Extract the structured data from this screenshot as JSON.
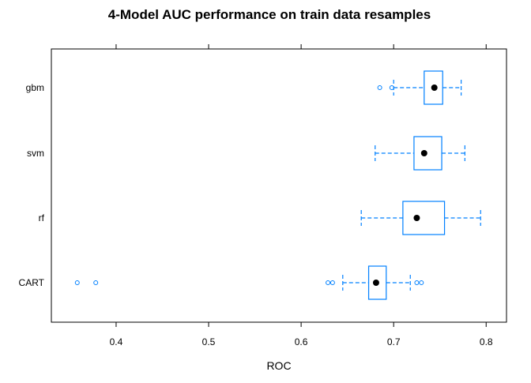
{
  "chart_data": {
    "type": "boxplot",
    "title": "4-Model AUC performance on train data resamples",
    "xlabel": "ROC",
    "ylabel": "",
    "xlim": [
      0.33,
      0.822
    ],
    "xticks": [
      "0.4",
      "0.5",
      "0.6",
      "0.7",
      "0.8"
    ],
    "xtick_values": [
      0.4,
      0.5,
      0.6,
      0.7,
      0.8
    ],
    "grid": false,
    "categories": [
      "gbm",
      "svm",
      "rf",
      "CART"
    ],
    "series": [
      {
        "name": "gbm",
        "whisker_low": 0.7,
        "q1": 0.733,
        "median": 0.744,
        "q3": 0.753,
        "whisker_high": 0.773,
        "outliers": [
          0.685,
          0.698
        ]
      },
      {
        "name": "svm",
        "whisker_low": 0.68,
        "q1": 0.722,
        "median": 0.733,
        "q3": 0.752,
        "whisker_high": 0.777,
        "outliers": []
      },
      {
        "name": "rf",
        "whisker_low": 0.665,
        "q1": 0.71,
        "median": 0.725,
        "q3": 0.755,
        "whisker_high": 0.794,
        "outliers": []
      },
      {
        "name": "CART",
        "whisker_low": 0.645,
        "q1": 0.673,
        "median": 0.681,
        "q3": 0.692,
        "whisker_high": 0.718,
        "outliers": [
          0.358,
          0.378,
          0.629,
          0.634,
          0.725,
          0.73
        ]
      }
    ],
    "colors": {
      "box": "#0080ff",
      "median": "#000000",
      "frame": "#000000"
    }
  }
}
